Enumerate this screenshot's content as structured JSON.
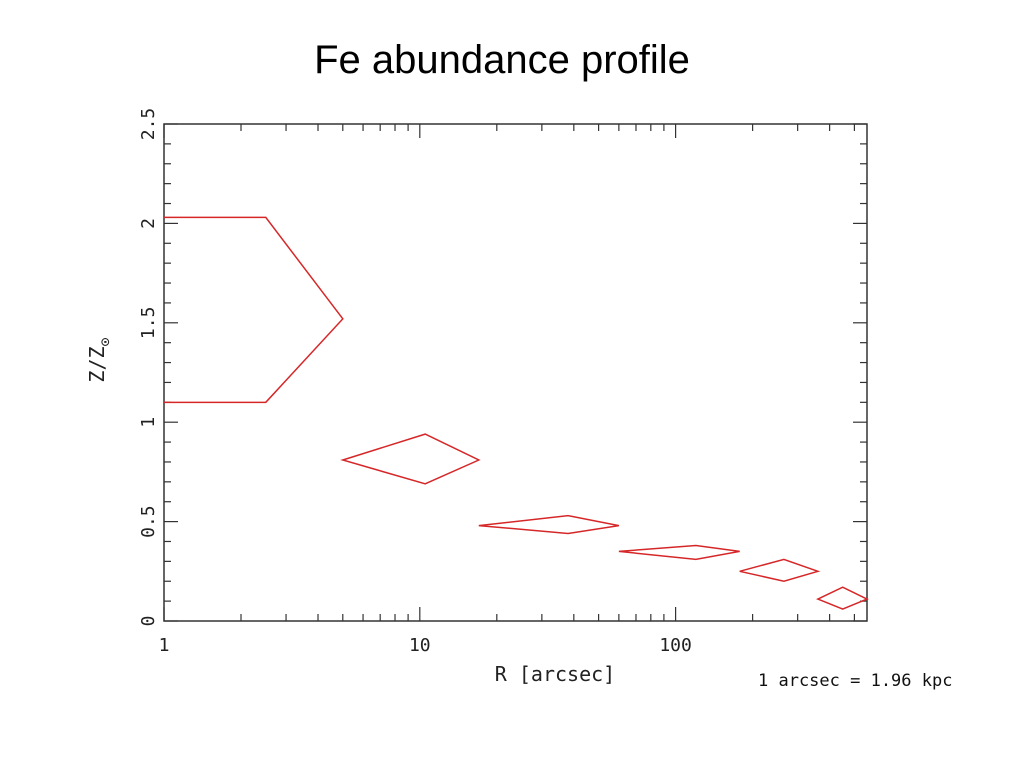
{
  "title": "Fe abundance profile",
  "footnote": "1 arcsec = 1.96 kpc",
  "chart_data": {
    "type": "scatter",
    "xlabel": "R [arcsec]",
    "ylabel": "Z/Z",
    "ylabel_subscript": "⊙",
    "xscale": "log",
    "xlim": [
      1,
      560
    ],
    "ylim": [
      0,
      2.5
    ],
    "xticks": [
      1,
      10,
      100
    ],
    "xtick_labels": [
      "1",
      "10",
      "100"
    ],
    "yticks": [
      0,
      0.5,
      1,
      1.5,
      2,
      2.5
    ],
    "ytick_labels": [
      "0",
      "0.5",
      "1",
      "1.5",
      "2",
      "2.5"
    ],
    "grid": false,
    "legend": "none",
    "color": "#d62728",
    "series": [
      {
        "marker": "diamond error box",
        "points": [
          {
            "r_low": 1.0,
            "r_high": 5.0,
            "r_peak": 2.5,
            "z_low": 1.1,
            "z_high": 2.03,
            "z_mid": 1.52
          },
          {
            "r_low": 5.0,
            "r_high": 17.0,
            "r_peak": 10.5,
            "z_low": 0.69,
            "z_high": 0.94,
            "z_mid": 0.81
          },
          {
            "r_low": 17.0,
            "r_high": 60.0,
            "r_peak": 38.0,
            "z_low": 0.44,
            "z_high": 0.53,
            "z_mid": 0.48
          },
          {
            "r_low": 60.0,
            "r_high": 178.0,
            "r_peak": 120.0,
            "z_low": 0.31,
            "z_high": 0.38,
            "z_mid": 0.35
          },
          {
            "r_low": 178.0,
            "r_high": 360.0,
            "r_peak": 265.0,
            "z_low": 0.2,
            "z_high": 0.31,
            "z_mid": 0.25
          },
          {
            "r_low": 360.0,
            "r_high": 560.0,
            "r_peak": 450.0,
            "z_low": 0.06,
            "z_high": 0.17,
            "z_mid": 0.11
          }
        ]
      }
    ]
  }
}
